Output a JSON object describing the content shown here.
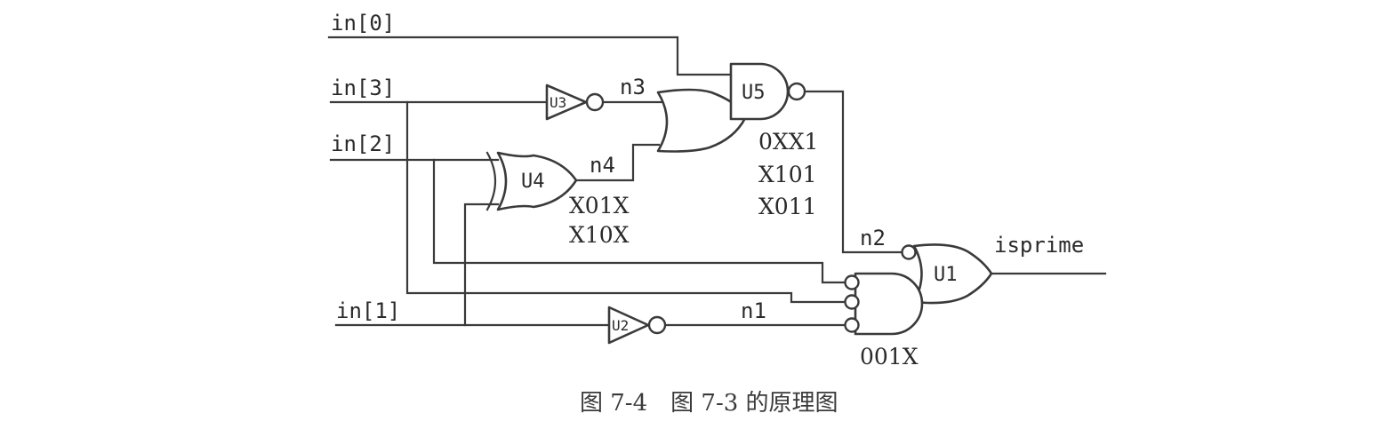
{
  "inputs": {
    "in0": "in[0]",
    "in3": "in[3]",
    "in2": "in[2]",
    "in1": "in[1]"
  },
  "output": "isprime",
  "nets": {
    "n1": "n1",
    "n2": "n2",
    "n3": "n3",
    "n4": "n4"
  },
  "gates": {
    "u1": "U1",
    "u2": "U2",
    "u3": "U3",
    "u4": "U4",
    "u5": "U5"
  },
  "annotations": {
    "u4_terms": [
      "X01X",
      "X10X"
    ],
    "u5_terms": [
      "0XX1",
      "X101",
      "X011"
    ],
    "u1_terms": [
      "001X"
    ]
  },
  "caption": "图 7-4　图 7-3 的原理图"
}
